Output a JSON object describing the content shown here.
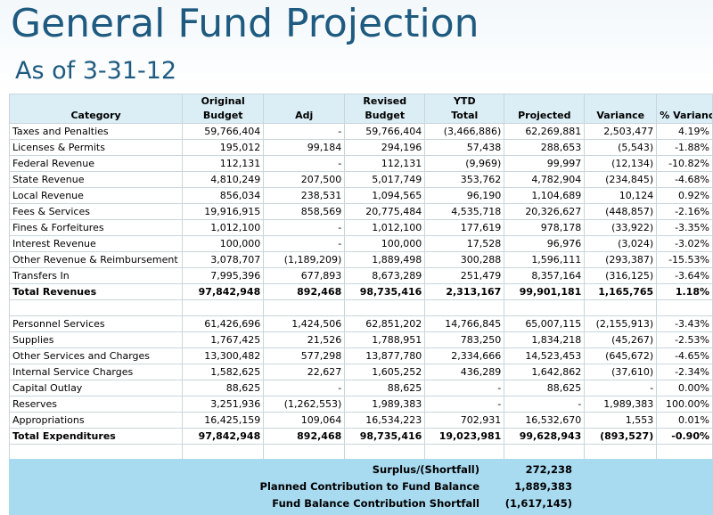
{
  "title": "General Fund Projection",
  "subtitle": "As of 3-31-12",
  "headers": {
    "row1": [
      "",
      "Original",
      "",
      "Revised",
      "YTD",
      "",
      "",
      ""
    ],
    "row2": [
      "Category",
      "Budget",
      "Adj",
      "Budget",
      "Total",
      "Projected",
      "Variance",
      "% Variance"
    ]
  },
  "revenues": [
    [
      "Taxes and Penalties",
      "59,766,404",
      "-",
      "59,766,404",
      "(3,466,886)",
      "62,269,881",
      "2,503,477",
      "4.19%"
    ],
    [
      "Licenses & Permits",
      "195,012",
      "99,184",
      "294,196",
      "57,438",
      "288,653",
      "(5,543)",
      "-1.88%"
    ],
    [
      "Federal Revenue",
      "112,131",
      "-",
      "112,131",
      "(9,969)",
      "99,997",
      "(12,134)",
      "-10.82%"
    ],
    [
      "State Revenue",
      "4,810,249",
      "207,500",
      "5,017,749",
      "353,762",
      "4,782,904",
      "(234,845)",
      "-4.68%"
    ],
    [
      "Local Revenue",
      "856,034",
      "238,531",
      "1,094,565",
      "96,190",
      "1,104,689",
      "10,124",
      "0.92%"
    ],
    [
      "Fees & Services",
      "19,916,915",
      "858,569",
      "20,775,484",
      "4,535,718",
      "20,326,627",
      "(448,857)",
      "-2.16%"
    ],
    [
      "Fines & Forfeitures",
      "1,012,100",
      "-",
      "1,012,100",
      "177,619",
      "978,178",
      "(33,922)",
      "-3.35%"
    ],
    [
      "Interest Revenue",
      "100,000",
      "-",
      "100,000",
      "17,528",
      "96,976",
      "(3,024)",
      "-3.02%"
    ],
    [
      "Other Revenue & Reimbursement",
      "3,078,707",
      "(1,189,209)",
      "1,889,498",
      "300,288",
      "1,596,111",
      "(293,387)",
      "-15.53%"
    ],
    [
      "Transfers In",
      "7,995,396",
      "677,893",
      "8,673,289",
      "251,479",
      "8,357,164",
      "(316,125)",
      "-3.64%"
    ]
  ],
  "total_revenues": [
    "Total Revenues",
    "97,842,948",
    "892,468",
    "98,735,416",
    "2,313,167",
    "99,901,181",
    "1,165,765",
    "1.18%"
  ],
  "expenditures": [
    [
      "Personnel Services",
      "61,426,696",
      "1,424,506",
      "62,851,202",
      "14,766,845",
      "65,007,115",
      "(2,155,913)",
      "-3.43%"
    ],
    [
      "Supplies",
      "1,767,425",
      "21,526",
      "1,788,951",
      "783,250",
      "1,834,218",
      "(45,267)",
      "-2.53%"
    ],
    [
      "Other Services and Charges",
      "13,300,482",
      "577,298",
      "13,877,780",
      "2,334,666",
      "14,523,453",
      "(645,672)",
      "-4.65%"
    ],
    [
      "Internal Service Charges",
      "1,582,625",
      "22,627",
      "1,605,252",
      "436,289",
      "1,642,862",
      "(37,610)",
      "-2.34%"
    ],
    [
      "Capital Outlay",
      "88,625",
      "-",
      "88,625",
      "-",
      "88,625",
      "-",
      "0.00%"
    ],
    [
      "Reserves",
      "3,251,936",
      "(1,262,553)",
      "1,989,383",
      "-",
      "-",
      "1,989,383",
      "100.00%"
    ],
    [
      "Appropriations",
      "16,425,159",
      "109,064",
      "16,534,223",
      "702,931",
      "16,532,670",
      "1,553",
      "0.01%"
    ]
  ],
  "total_expenditures": [
    "Total Expenditures",
    "97,842,948",
    "892,468",
    "98,735,416",
    "19,023,981",
    "99,628,943",
    "(893,527)",
    "-0.90%"
  ],
  "summary": [
    {
      "label": "Surplus/(Shortfall)",
      "value": "272,238"
    },
    {
      "label": "Planned Contribution to Fund Balance",
      "value": "1,889,383"
    },
    {
      "label": "Fund Balance Contribution Shortfall",
      "value": "(1,617,145)"
    }
  ],
  "colors": {
    "title": "#1f5b80",
    "header_bg": "#dbeef6",
    "summary_bg": "#a8daf0"
  }
}
